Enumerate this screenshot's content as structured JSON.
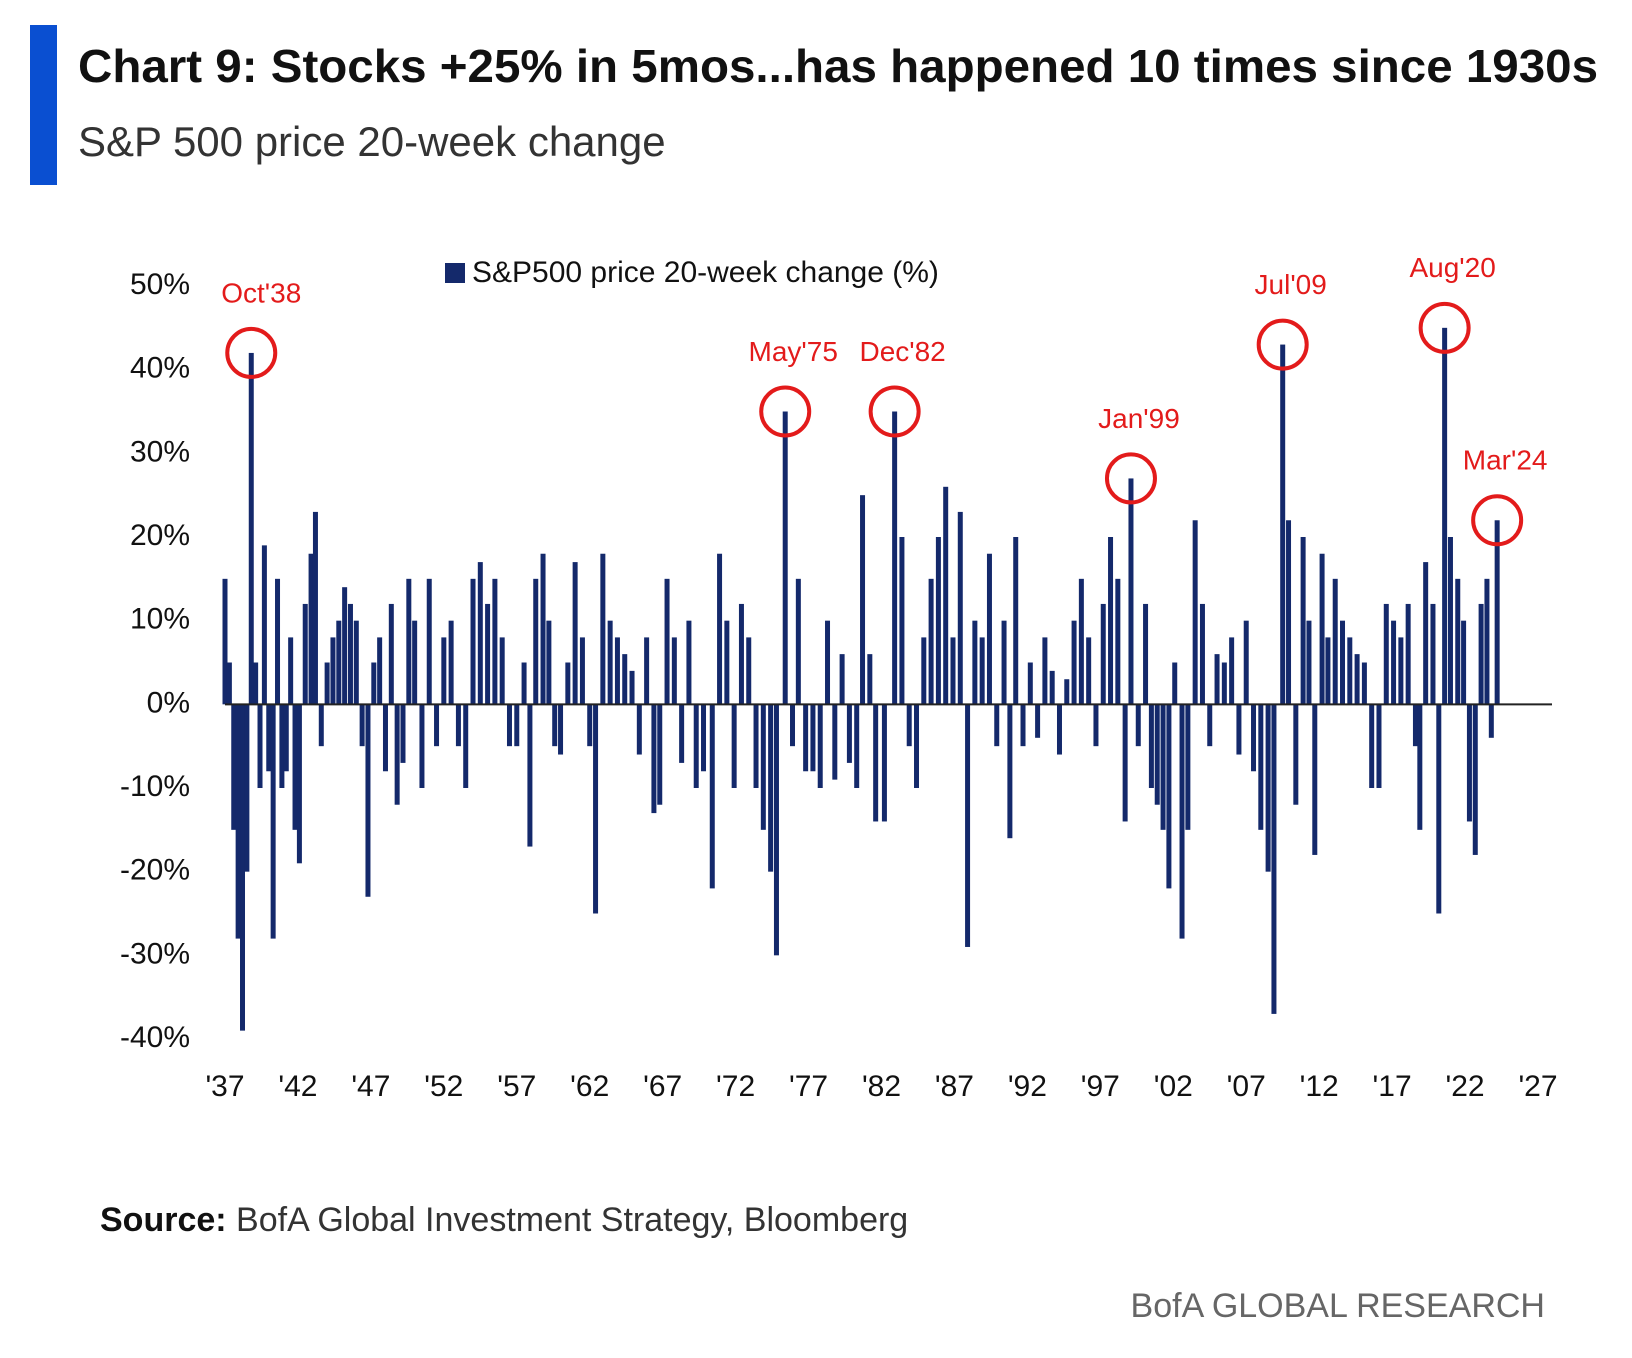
{
  "chart_data": {
    "type": "bar",
    "title": "Chart 9: Stocks +25% in 5mos...has happened 10 times since 1930s",
    "subtitle": "S&P 500 price 20-week change",
    "source_label": "Source:",
    "source": "BofA Global Investment Strategy, Bloomberg",
    "footer": "BofA GLOBAL RESEARCH",
    "legend": "top",
    "xlim": [
      1937,
      2027
    ],
    "ylim": [
      -40,
      50
    ],
    "xticks": [
      {
        "value": 1937,
        "label": "'37"
      },
      {
        "value": 1942,
        "label": "'42"
      },
      {
        "value": 1947,
        "label": "'47"
      },
      {
        "value": 1952,
        "label": "'52"
      },
      {
        "value": 1957,
        "label": "'57"
      },
      {
        "value": 1962,
        "label": "'62"
      },
      {
        "value": 1967,
        "label": "'67"
      },
      {
        "value": 1972,
        "label": "'72"
      },
      {
        "value": 1977,
        "label": "'77"
      },
      {
        "value": 1982,
        "label": "'82"
      },
      {
        "value": 1987,
        "label": "'87"
      },
      {
        "value": 1992,
        "label": "'92"
      },
      {
        "value": 1997,
        "label": "'97"
      },
      {
        "value": 2002,
        "label": "'02"
      },
      {
        "value": 2007,
        "label": "'07"
      },
      {
        "value": 2012,
        "label": "'12"
      },
      {
        "value": 2017,
        "label": "'17"
      },
      {
        "value": 2022,
        "label": "'22"
      },
      {
        "value": 2027,
        "label": "'27"
      }
    ],
    "yticks": [
      {
        "value": 50,
        "label": "50%"
      },
      {
        "value": 40,
        "label": "40%"
      },
      {
        "value": 30,
        "label": "30%"
      },
      {
        "value": 20,
        "label": "20%"
      },
      {
        "value": 10,
        "label": "10%"
      },
      {
        "value": 0,
        "label": "0%"
      },
      {
        "value": -10,
        "label": "-10%"
      },
      {
        "value": -20,
        "label": "-20%"
      },
      {
        "value": -30,
        "label": "-30%"
      },
      {
        "value": -40,
        "label": "-40%"
      }
    ],
    "annotations": [
      {
        "text": "Oct'38",
        "x": 1938.8,
        "y": 42
      },
      {
        "text": "May'75",
        "x": 1975.4,
        "y": 35
      },
      {
        "text": "Dec'82",
        "x": 1982.9,
        "y": 35
      },
      {
        "text": "Jan'99",
        "x": 1999.1,
        "y": 27
      },
      {
        "text": "Jul'09",
        "x": 2009.5,
        "y": 43
      },
      {
        "text": "Aug'20",
        "x": 2020.6,
        "y": 45
      },
      {
        "text": "Mar'24",
        "x": 2024.2,
        "y": 22
      }
    ],
    "series": [
      {
        "name": "S&P500 price 20-week change (%)",
        "color": "#14296b",
        "x": [
          1937.0,
          1937.3,
          1937.6,
          1937.9,
          1938.2,
          1938.5,
          1938.8,
          1939.1,
          1939.4,
          1939.7,
          1940.0,
          1940.3,
          1940.6,
          1940.9,
          1941.2,
          1941.5,
          1941.8,
          1942.1,
          1942.5,
          1942.9,
          1943.2,
          1943.6,
          1944.0,
          1944.4,
          1944.8,
          1945.2,
          1945.6,
          1946.0,
          1946.4,
          1946.8,
          1947.2,
          1947.6,
          1948.0,
          1948.4,
          1948.8,
          1949.2,
          1949.6,
          1950.0,
          1950.5,
          1951.0,
          1951.5,
          1952.0,
          1952.5,
          1953.0,
          1953.5,
          1954.0,
          1954.5,
          1955.0,
          1955.5,
          1956.0,
          1956.5,
          1957.0,
          1957.5,
          1957.9,
          1958.3,
          1958.8,
          1959.2,
          1959.6,
          1960.0,
          1960.5,
          1961.0,
          1961.5,
          1962.0,
          1962.4,
          1962.9,
          1963.4,
          1963.9,
          1964.4,
          1964.9,
          1965.4,
          1965.9,
          1966.4,
          1966.8,
          1967.3,
          1967.8,
          1968.3,
          1968.8,
          1969.3,
          1969.8,
          1970.4,
          1970.9,
          1971.4,
          1971.9,
          1972.4,
          1972.9,
          1973.4,
          1973.9,
          1974.4,
          1974.8,
          1975.4,
          1975.9,
          1976.3,
          1976.8,
          1977.3,
          1977.8,
          1978.3,
          1978.8,
          1979.3,
          1979.8,
          1980.3,
          1980.7,
          1981.2,
          1981.6,
          1982.2,
          1982.9,
          1983.4,
          1983.9,
          1984.4,
          1984.9,
          1985.4,
          1985.9,
          1986.4,
          1986.9,
          1987.4,
          1987.9,
          1988.4,
          1988.9,
          1989.4,
          1989.9,
          1990.4,
          1990.8,
          1991.2,
          1991.7,
          1992.2,
          1992.7,
          1993.2,
          1993.7,
          1994.2,
          1994.7,
          1995.2,
          1995.7,
          1996.2,
          1996.7,
          1997.2,
          1997.7,
          1998.2,
          1998.7,
          1999.1,
          1999.6,
          2000.1,
          2000.5,
          2000.9,
          2001.3,
          2001.7,
          2002.1,
          2002.6,
          2003.0,
          2003.5,
          2004.0,
          2004.5,
          2005.0,
          2005.5,
          2006.0,
          2006.5,
          2007.0,
          2007.5,
          2008.0,
          2008.5,
          2008.9,
          2009.5,
          2009.9,
          2010.4,
          2010.9,
          2011.3,
          2011.7,
          2012.2,
          2012.6,
          2013.1,
          2013.6,
          2014.1,
          2014.6,
          2015.1,
          2015.6,
          2016.1,
          2016.6,
          2017.1,
          2017.6,
          2018.1,
          2018.6,
          2018.9,
          2019.3,
          2019.8,
          2020.2,
          2020.6,
          2021.0,
          2021.5,
          2021.9,
          2022.3,
          2022.7,
          2023.1,
          2023.5,
          2023.8,
          2024.2
        ],
        "values": [
          15,
          5,
          -15,
          -28,
          -39,
          -20,
          42,
          5,
          -10,
          19,
          -8,
          -28,
          15,
          -10,
          -8,
          8,
          -15,
          -19,
          12,
          18,
          23,
          -5,
          5,
          8,
          10,
          14,
          12,
          10,
          -5,
          -23,
          5,
          8,
          -8,
          12,
          -12,
          -7,
          15,
          10,
          -10,
          15,
          -5,
          8,
          10,
          -5,
          -10,
          15,
          17,
          12,
          15,
          8,
          -5,
          -5,
          5,
          -17,
          15,
          18,
          10,
          -5,
          -6,
          5,
          17,
          8,
          -5,
          -25,
          18,
          10,
          8,
          6,
          4,
          -6,
          8,
          -13,
          -12,
          15,
          8,
          -7,
          10,
          -10,
          -8,
          -22,
          18,
          10,
          -10,
          12,
          8,
          -10,
          -15,
          -20,
          -30,
          35,
          -5,
          15,
          -8,
          -8,
          -10,
          10,
          -9,
          6,
          -7,
          -10,
          25,
          6,
          -14,
          -14,
          35,
          20,
          -5,
          -10,
          8,
          15,
          20,
          26,
          8,
          23,
          -29,
          10,
          8,
          18,
          -5,
          10,
          -16,
          20,
          -5,
          5,
          -4,
          8,
          4,
          -6,
          3,
          10,
          15,
          8,
          -5,
          12,
          20,
          15,
          -14,
          27,
          -5,
          12,
          -10,
          -12,
          -15,
          -22,
          5,
          -28,
          -15,
          22,
          12,
          -5,
          6,
          5,
          8,
          -6,
          10,
          -8,
          -15,
          -20,
          -37,
          43,
          22,
          -12,
          20,
          10,
          -18,
          18,
          8,
          15,
          10,
          8,
          6,
          5,
          -10,
          -10,
          12,
          10,
          8,
          12,
          -5,
          -15,
          17,
          12,
          -25,
          45,
          20,
          15,
          10,
          -14,
          -18,
          12,
          15,
          -4,
          22
        ]
      }
    ]
  }
}
